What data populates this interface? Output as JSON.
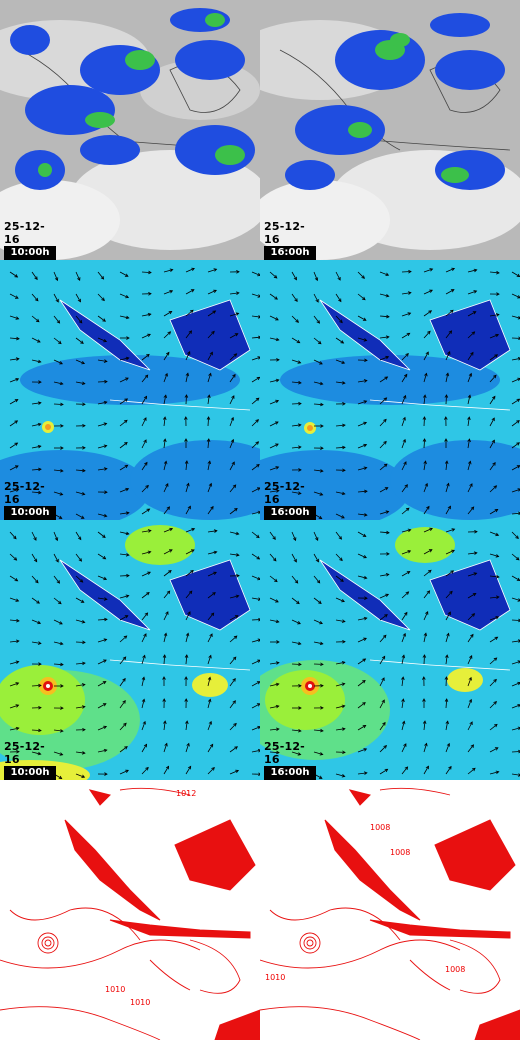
{
  "rows": [
    {
      "name": "satellite-ir",
      "panels": [
        {
          "date": "25-12-16",
          "time": "10:00h"
        },
        {
          "date": "25-12-16",
          "time": "16:00h"
        }
      ]
    },
    {
      "name": "wind-low-level",
      "panels": [
        {
          "date": "25-12-16",
          "time": "10:00h"
        },
        {
          "date": "25-12-16",
          "time": "16:00h"
        }
      ]
    },
    {
      "name": "wind-upper-level",
      "panels": [
        {
          "date": "25-12-16",
          "time": "10:00h"
        },
        {
          "date": "25-12-16",
          "time": "16:00h"
        }
      ]
    },
    {
      "name": "surface-pressure",
      "panels": [
        {
          "contour_labels": [
            "1012",
            "1010",
            "1010"
          ]
        },
        {
          "contour_labels": [
            "1008",
            "1008",
            "1008",
            "1010"
          ]
        }
      ]
    }
  ],
  "colors": {
    "sat_bg": "#bdbdbd",
    "sat_cloud": "#f2f2f2",
    "precip_blue": "#1f4de0",
    "precip_green": "#3cc04a",
    "wind_cyan": "#2fd8e8",
    "wind_blue": "#1d8ce0",
    "land_dark": "#102db8",
    "wind_yellow": "#e6ef3a",
    "pressure_line": "#e81010"
  }
}
